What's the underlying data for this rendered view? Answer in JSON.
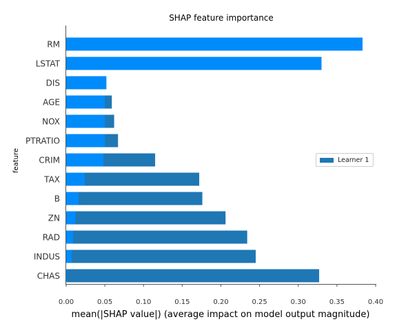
{
  "chart_data": {
    "type": "bar",
    "orientation": "horizontal",
    "title": "SHAP feature importance",
    "xlabel": "mean(|SHAP value|) (average impact on model output magnitude)",
    "ylabel": "feature",
    "xlim": [
      0.0,
      0.4
    ],
    "x_ticks": [
      "0.00",
      "0.05",
      "0.10",
      "0.15",
      "0.20",
      "0.25",
      "0.30",
      "0.35",
      "0.40"
    ],
    "categories": [
      "RM",
      "LSTAT",
      "DIS",
      "AGE",
      "NOX",
      "PTRATIO",
      "CRIM",
      "TAX",
      "B",
      "ZN",
      "RAD",
      "INDUS",
      "CHAS"
    ],
    "series": [
      {
        "name": "Learner 1",
        "color": "#1f77b4",
        "values": [
          0.383,
          0.33,
          0.05,
          0.059,
          0.062,
          0.067,
          0.115,
          0.172,
          0.176,
          0.206,
          0.234,
          0.245,
          0.327
        ]
      },
      {
        "color": "#008bfb",
        "values": [
          0.383,
          0.33,
          0.052,
          0.05,
          0.05,
          0.05,
          0.048,
          0.024,
          0.016,
          0.012,
          0.009,
          0.007,
          0.001
        ]
      }
    ],
    "grid": false,
    "legend_position": "center-right"
  }
}
